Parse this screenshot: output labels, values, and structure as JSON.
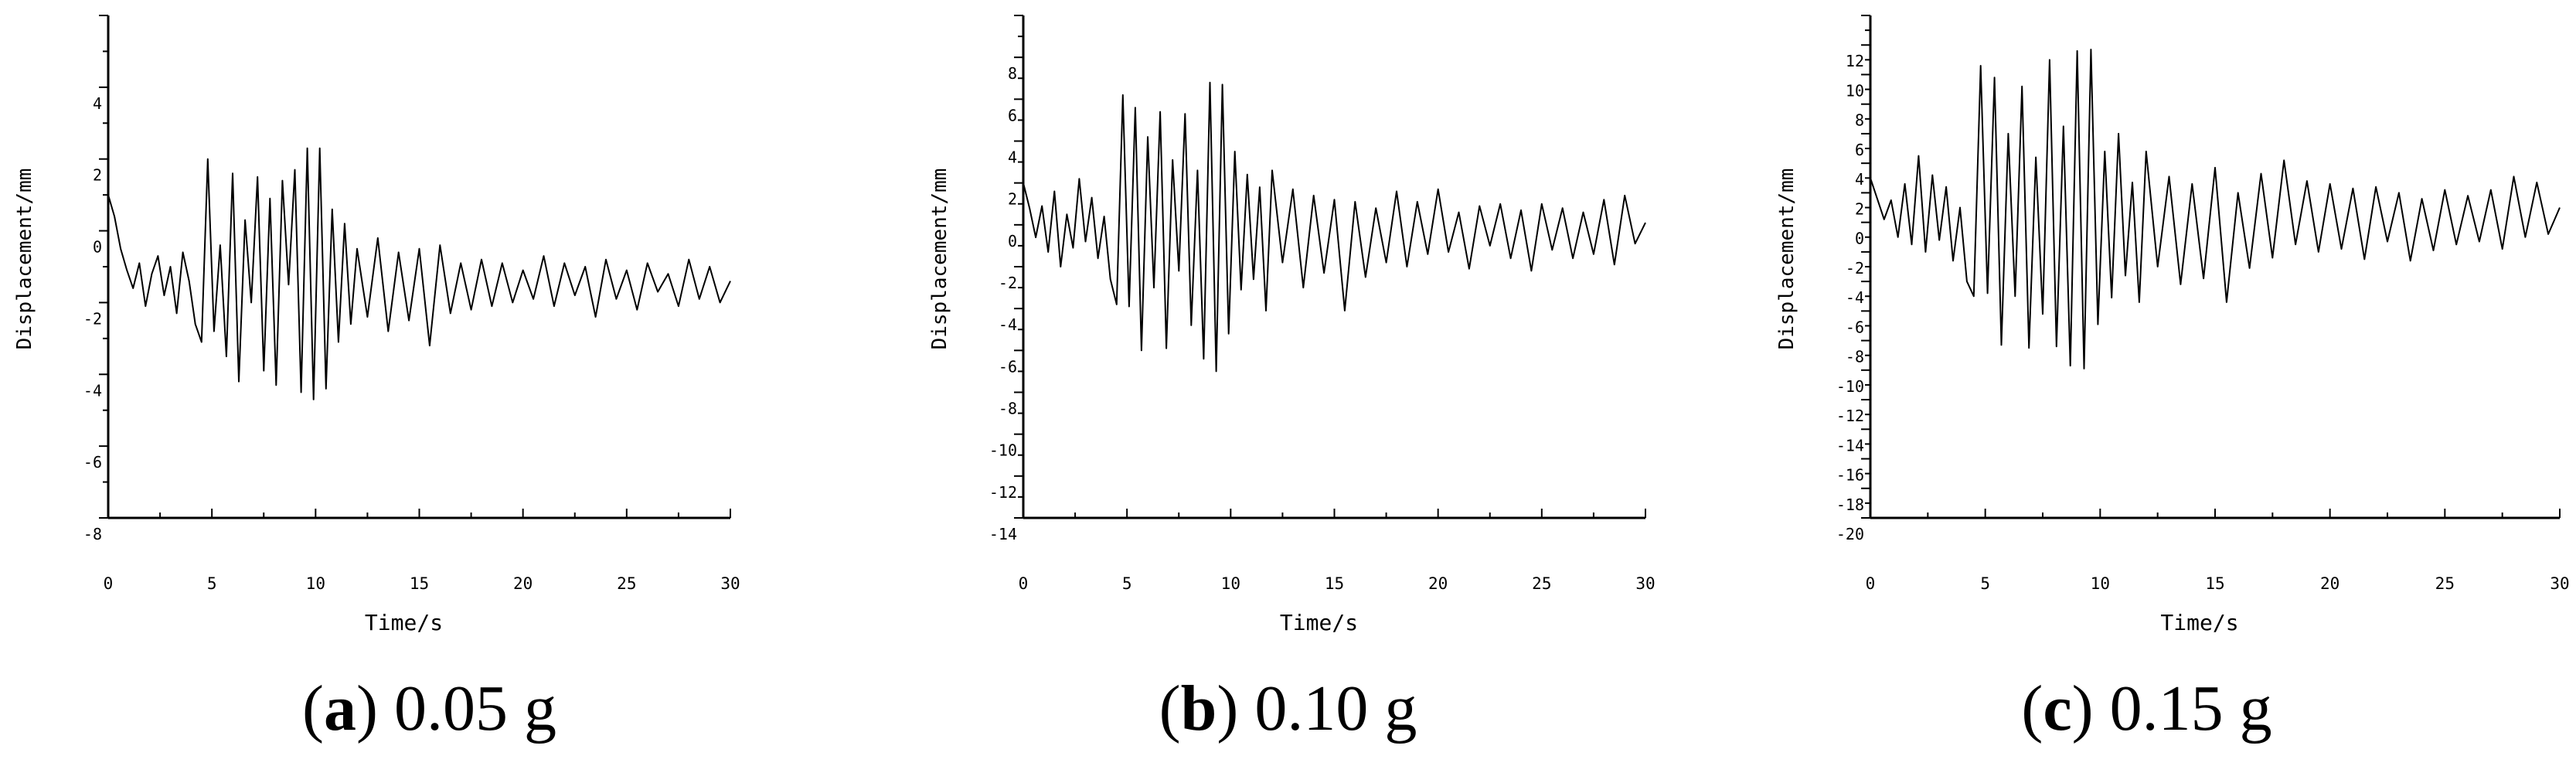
{
  "chart_data": [
    {
      "type": "line",
      "caption_letter": "a",
      "caption_value": "0.05 g",
      "xlabel": "Time/s",
      "ylabel": "Displacement/mm",
      "xlim": [
        0,
        30
      ],
      "ylim": [
        -8,
        6
      ],
      "xticks": [
        0,
        5,
        10,
        15,
        20,
        25,
        30
      ],
      "yticks": [
        -8,
        -6,
        -4,
        -2,
        0,
        2,
        4
      ],
      "ytick_labels": [
        "-8",
        "-6",
        "-4",
        "-2",
        "0",
        "2",
        "4"
      ],
      "series": [
        {
          "x": [
            0,
            0.3,
            0.6,
            0.9,
            1.2,
            1.5,
            1.8,
            2.1,
            2.4,
            2.7,
            3.0,
            3.3,
            3.6,
            3.9,
            4.2,
            4.5,
            4.8,
            5.1,
            5.4,
            5.7,
            6.0,
            6.3,
            6.6,
            6.9,
            7.2,
            7.5,
            7.8,
            8.1,
            8.4,
            8.7,
            9.0,
            9.3,
            9.6,
            9.9,
            10.2,
            10.5,
            10.8,
            11.1,
            11.4,
            11.7,
            12.0,
            12.5,
            13.0,
            13.5,
            14.0,
            14.5,
            15.0,
            15.5,
            16.0,
            16.5,
            17.0,
            17.5,
            18.0,
            18.5,
            19.0,
            19.5,
            20.0,
            20.5,
            21.0,
            21.5,
            22.0,
            22.5,
            23.0,
            23.5,
            24.0,
            24.5,
            25.0,
            25.5,
            26.0,
            26.5,
            27.0,
            27.5,
            28.0,
            28.5,
            29.0,
            29.5,
            30.0
          ],
          "y": [
            1.0,
            0.4,
            -0.5,
            -1.1,
            -1.6,
            -0.9,
            -2.1,
            -1.2,
            -0.7,
            -1.8,
            -1.0,
            -2.3,
            -0.6,
            -1.4,
            -2.6,
            -3.1,
            2.0,
            -2.8,
            -0.4,
            -3.5,
            1.6,
            -4.2,
            0.3,
            -2.0,
            1.5,
            -3.9,
            0.9,
            -4.3,
            1.4,
            -1.5,
            1.7,
            -4.5,
            2.3,
            -4.7,
            2.3,
            -4.4,
            0.6,
            -3.1,
            0.2,
            -2.6,
            -0.5,
            -2.4,
            -0.2,
            -2.8,
            -0.6,
            -2.5,
            -0.5,
            -3.2,
            -0.4,
            -2.3,
            -0.9,
            -2.2,
            -0.8,
            -2.1,
            -0.9,
            -2.0,
            -1.1,
            -1.9,
            -0.7,
            -2.1,
            -0.9,
            -1.8,
            -1.0,
            -2.4,
            -0.8,
            -1.9,
            -1.1,
            -2.2,
            -0.9,
            -1.7,
            -1.2,
            -2.1,
            -0.8,
            -1.9,
            -1.0,
            -2.0,
            -1.4
          ]
        }
      ]
    },
    {
      "type": "line",
      "caption_letter": "b",
      "caption_value": "0.10 g",
      "xlabel": "Time/s",
      "ylabel": "Displacement/mm",
      "xlim": [
        0,
        30
      ],
      "ylim": [
        -14,
        10
      ],
      "xticks": [
        0,
        5,
        10,
        15,
        20,
        25,
        30
      ],
      "yticks": [
        -14,
        -12,
        -10,
        -8,
        -6,
        -4,
        -2,
        0,
        2,
        4,
        6,
        8
      ],
      "ytick_labels": [
        "-14",
        "-12",
        "-10",
        "-8",
        "-6",
        "-4",
        "-2",
        "0",
        "2",
        "4",
        "6",
        "8"
      ],
      "series": [
        {
          "x": [
            0,
            0.3,
            0.6,
            0.9,
            1.2,
            1.5,
            1.8,
            2.1,
            2.4,
            2.7,
            3.0,
            3.3,
            3.6,
            3.9,
            4.2,
            4.5,
            4.8,
            5.1,
            5.4,
            5.7,
            6.0,
            6.3,
            6.6,
            6.9,
            7.2,
            7.5,
            7.8,
            8.1,
            8.4,
            8.7,
            9.0,
            9.3,
            9.6,
            9.9,
            10.2,
            10.5,
            10.8,
            11.1,
            11.4,
            11.7,
            12.0,
            12.5,
            13.0,
            13.5,
            14.0,
            14.5,
            15.0,
            15.5,
            16.0,
            16.5,
            17.0,
            17.5,
            18.0,
            18.5,
            19.0,
            19.5,
            20.0,
            20.5,
            21.0,
            21.5,
            22.0,
            22.5,
            23.0,
            23.5,
            24.0,
            24.5,
            25.0,
            25.5,
            26.0,
            26.5,
            27.0,
            27.5,
            28.0,
            28.5,
            29.0,
            29.5,
            30.0
          ],
          "y": [
            2.0,
            0.8,
            -0.6,
            0.9,
            -1.3,
            1.6,
            -2.0,
            0.5,
            -1.1,
            2.2,
            -0.8,
            1.3,
            -1.6,
            0.4,
            -2.6,
            -3.8,
            6.2,
            -3.9,
            5.6,
            -6.0,
            4.2,
            -3.0,
            5.4,
            -5.9,
            3.1,
            -2.2,
            5.3,
            -4.8,
            2.6,
            -6.4,
            6.8,
            -7.0,
            6.7,
            -5.2,
            3.5,
            -3.1,
            2.4,
            -2.6,
            1.8,
            -4.1,
            2.6,
            -1.8,
            1.7,
            -3.0,
            1.4,
            -2.3,
            1.2,
            -4.1,
            1.1,
            -2.5,
            0.8,
            -1.8,
            1.6,
            -2.0,
            1.1,
            -1.4,
            1.7,
            -1.3,
            0.6,
            -2.1,
            0.9,
            -1.0,
            1.0,
            -1.6,
            0.7,
            -2.2,
            1.0,
            -1.2,
            0.8,
            -1.6,
            0.6,
            -1.4,
            1.2,
            -1.9,
            1.4,
            -0.9,
            0.1
          ]
        }
      ]
    },
    {
      "type": "line",
      "caption_letter": "c",
      "caption_value": "0.15 g",
      "xlabel": "Time/s",
      "ylabel": "Displacement/mm",
      "xlim": [
        0,
        30
      ],
      "ylim": [
        -20,
        14
      ],
      "xticks": [
        0,
        5,
        10,
        15,
        20,
        25,
        30
      ],
      "yticks": [
        -20,
        -18,
        -16,
        -14,
        -12,
        -10,
        -8,
        -6,
        -4,
        -2,
        0,
        2,
        4,
        6,
        8,
        10,
        12
      ],
      "ytick_labels": [
        "-20",
        "-18",
        "-16",
        "-14",
        "-12",
        "-10",
        "-8",
        "-6",
        "-4",
        "-2",
        "0",
        "2",
        "4",
        "6",
        "8",
        "10",
        "12"
      ],
      "series": [
        {
          "x": [
            0,
            0.3,
            0.6,
            0.9,
            1.2,
            1.5,
            1.8,
            2.1,
            2.4,
            2.7,
            3.0,
            3.3,
            3.6,
            3.9,
            4.2,
            4.5,
            4.8,
            5.1,
            5.4,
            5.7,
            6.0,
            6.3,
            6.6,
            6.9,
            7.2,
            7.5,
            7.8,
            8.1,
            8.4,
            8.7,
            9.0,
            9.3,
            9.6,
            9.9,
            10.2,
            10.5,
            10.8,
            11.1,
            11.4,
            11.7,
            12.0,
            12.5,
            13.0,
            13.5,
            14.0,
            14.5,
            15.0,
            15.5,
            16.0,
            16.5,
            17.0,
            17.5,
            18.0,
            18.5,
            19.0,
            19.5,
            20.0,
            20.5,
            21.0,
            21.5,
            22.0,
            22.5,
            23.0,
            23.5,
            24.0,
            24.5,
            25.0,
            25.5,
            26.0,
            26.5,
            27.0,
            27.5,
            28.0,
            28.5,
            29.0,
            29.5,
            30.0
          ],
          "y": [
            3.0,
            1.6,
            0.2,
            1.5,
            -1.0,
            2.6,
            -1.5,
            4.5,
            -2.0,
            3.2,
            -1.2,
            2.4,
            -2.6,
            1.0,
            -4.0,
            -5.0,
            10.6,
            -4.8,
            9.8,
            -8.3,
            6.0,
            -5.0,
            9.2,
            -8.5,
            4.4,
            -6.2,
            11.0,
            -8.4,
            6.5,
            -9.7,
            11.6,
            -9.9,
            11.7,
            -6.9,
            4.8,
            -5.1,
            6.0,
            -3.6,
            2.7,
            -5.4,
            4.8,
            -3.0,
            3.1,
            -4.2,
            2.6,
            -3.8,
            3.7,
            -5.4,
            2.0,
            -3.1,
            3.3,
            -2.4,
            4.2,
            -1.5,
            2.8,
            -2.0,
            2.6,
            -1.8,
            2.3,
            -2.5,
            2.4,
            -1.3,
            2.0,
            -2.6,
            1.6,
            -1.9,
            2.2,
            -1.5,
            1.8,
            -1.3,
            2.2,
            -1.8,
            3.1,
            -1.0,
            2.7,
            -0.8,
            1.0
          ]
        }
      ]
    }
  ]
}
